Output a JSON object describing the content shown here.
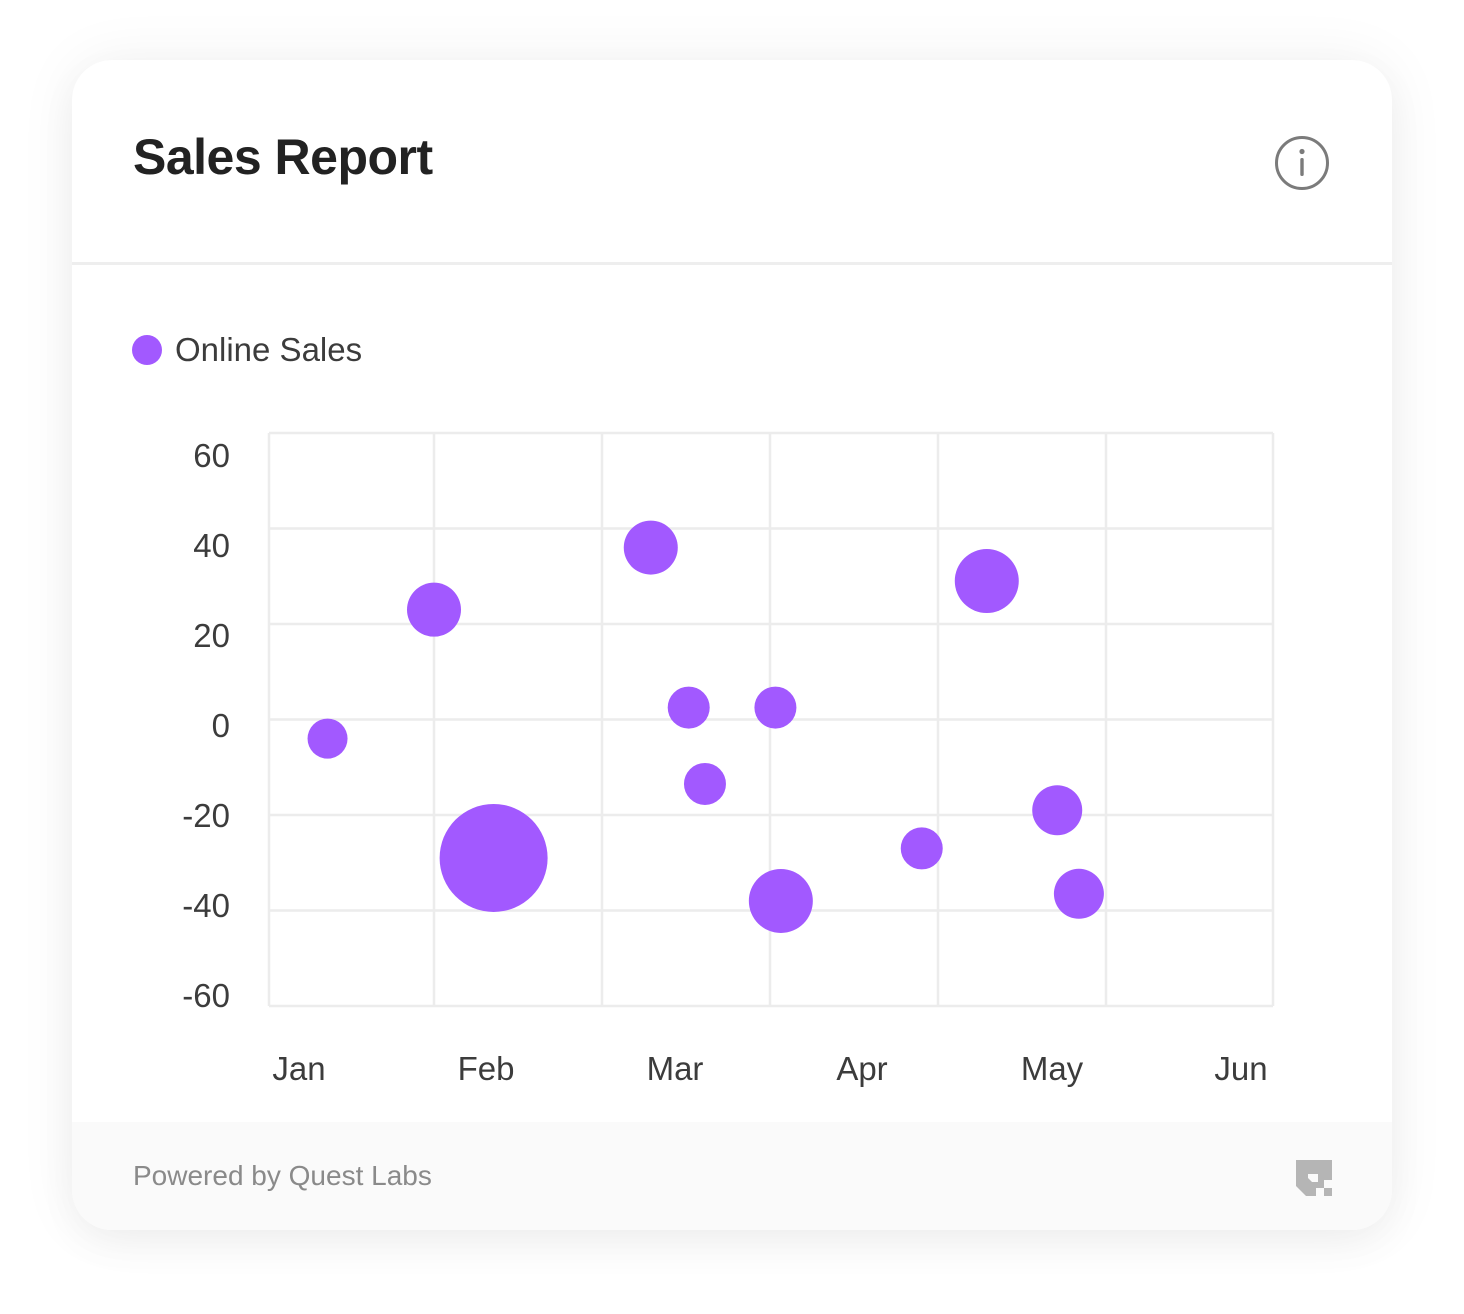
{
  "card": {
    "title": "Sales Report",
    "info_icon": "info-icon"
  },
  "legend": {
    "label": "Online Sales",
    "color": "#A259FF"
  },
  "footer": {
    "powered_by": "Powered by Quest Labs",
    "logo_icon": "quest-labs-logo-icon"
  },
  "chart_data": {
    "type": "bubble",
    "x_categories": [
      "Jan",
      "Feb",
      "Mar",
      "Apr",
      "May",
      "Jun"
    ],
    "y_ticks": [
      60,
      40,
      20,
      0,
      -20,
      -40,
      -60
    ],
    "ylim": [
      -60,
      60
    ],
    "grid": true,
    "legend_position": "top-left",
    "series": [
      {
        "name": "Online Sales",
        "color": "#A259FF",
        "points": [
          {
            "x": "Jan 12",
            "y": -4,
            "size": 20
          },
          {
            "x": "Feb 1",
            "y": 23,
            "size": 27
          },
          {
            "x": "Feb 12",
            "y": -29,
            "size": 54
          },
          {
            "x": "Mar 10",
            "y": 36,
            "size": 27
          },
          {
            "x": "Mar 17",
            "y": 2.5,
            "size": 21
          },
          {
            "x": "Mar 20",
            "y": -13.5,
            "size": 21
          },
          {
            "x": "Apr 2",
            "y": 2.5,
            "size": 21
          },
          {
            "x": "Apr 3",
            "y": -38,
            "size": 32
          },
          {
            "x": "Apr 29",
            "y": -27,
            "size": 21
          },
          {
            "x": "May 10",
            "y": 29,
            "size": 32
          },
          {
            "x": "May 23",
            "y": -19,
            "size": 25
          },
          {
            "x": "May 27",
            "y": -36.5,
            "size": 25
          }
        ]
      }
    ]
  }
}
